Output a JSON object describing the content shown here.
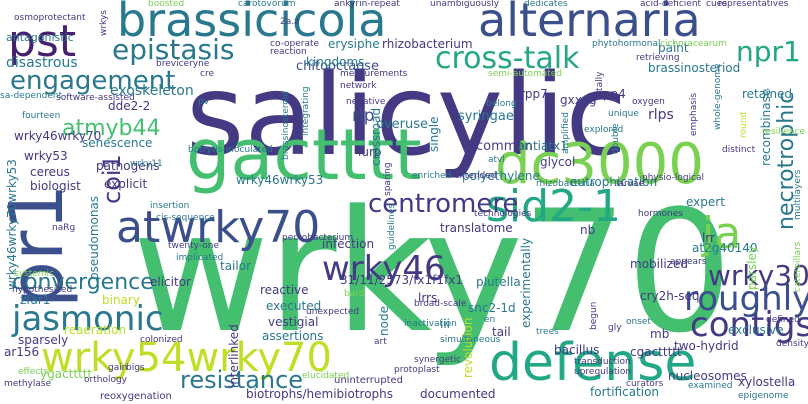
{
  "palette": {
    "navy": "#3b4f8c",
    "indigo": "#433a83",
    "purple": "#46206e",
    "teal": "#2a788e",
    "cyan": "#22a884",
    "green": "#44bf70",
    "lime": "#7ad151",
    "yellowgreen": "#bddf26"
  },
  "words": [
    {
      "text": "salicylic",
      "color": "indigo"
    },
    {
      "text": "wrky70",
      "color": "green"
    },
    {
      "text": "pr1",
      "color": "navy"
    },
    {
      "text": "gactttt",
      "color": "green"
    },
    {
      "text": "brassicicola",
      "color": "teal"
    },
    {
      "text": "alternaria",
      "color": "navy"
    },
    {
      "text": "dc3000",
      "color": "lime"
    },
    {
      "text": "defense",
      "color": "cyan"
    },
    {
      "text": "wrky54wrky70",
      "color": "yellowgreen"
    },
    {
      "text": "atwrky70",
      "color": "navy"
    },
    {
      "text": "pst",
      "color": "purple"
    },
    {
      "text": "sid2-1",
      "color": "cyan"
    },
    {
      "text": "ja",
      "color": "lime"
    },
    {
      "text": "jasmonic",
      "color": "teal"
    },
    {
      "text": "wrky46",
      "color": "indigo"
    },
    {
      "text": "cross-talk",
      "color": "cyan"
    },
    {
      "text": "epistasis",
      "color": "teal"
    },
    {
      "text": "engagement",
      "color": "teal"
    },
    {
      "text": "npr1",
      "color": "cyan"
    },
    {
      "text": "contigs",
      "color": "indigo"
    },
    {
      "text": "wrky30",
      "color": "indigo"
    },
    {
      "text": "roughly",
      "color": "navy"
    },
    {
      "text": "centromere",
      "color": "indigo"
    },
    {
      "text": "convergence",
      "color": "teal"
    },
    {
      "text": "resistance",
      "color": "teal"
    },
    {
      "text": "coi1",
      "color": "indigo"
    },
    {
      "text": "atmyb44",
      "color": "green"
    },
    {
      "text": "necrotrophic",
      "color": "teal"
    },
    {
      "text": "exoskeleton",
      "color": "teal"
    },
    {
      "text": "chitooctaose",
      "color": "navy"
    },
    {
      "text": "disastrous",
      "color": "teal"
    },
    {
      "text": "antagonistic",
      "color": "teal"
    },
    {
      "text": "rhizobacterium",
      "color": "indigo"
    },
    {
      "text": "erysiphe",
      "color": "teal"
    },
    {
      "text": "kingdoms",
      "color": "teal"
    },
    {
      "text": "overuse",
      "color": "teal"
    },
    {
      "text": "rlp",
      "color": "navy"
    },
    {
      "text": "syringae",
      "color": "teal"
    },
    {
      "text": "rpp7",
      "color": "indigo"
    },
    {
      "text": "gxxxg",
      "color": "indigo"
    },
    {
      "text": "rpp4",
      "color": "indigo"
    },
    {
      "text": "rlps",
      "color": "indigo"
    },
    {
      "text": "paint",
      "color": "teal"
    },
    {
      "text": "brassinosteriod",
      "color": "teal"
    },
    {
      "text": "retained",
      "color": "teal"
    },
    {
      "text": "recombinase",
      "color": "teal"
    },
    {
      "text": "dde2-2",
      "color": "indigo"
    },
    {
      "text": "wrky46wrky70",
      "color": "indigo"
    },
    {
      "text": "wrky53",
      "color": "indigo"
    },
    {
      "text": "senescence",
      "color": "teal"
    },
    {
      "text": "cereus",
      "color": "indigo"
    },
    {
      "text": "pathogens",
      "color": "indigo"
    },
    {
      "text": "explicit",
      "color": "indigo"
    },
    {
      "text": "biologist",
      "color": "indigo"
    },
    {
      "text": "wrky46wrky53",
      "color": "teal"
    },
    {
      "text": "lurp",
      "color": "indigo"
    },
    {
      "text": "crossroad",
      "color": "teal"
    },
    {
      "text": "single",
      "color": "teal"
    },
    {
      "text": "common",
      "color": "indigo"
    },
    {
      "text": "antiatx1",
      "color": "teal"
    },
    {
      "text": "glycol",
      "color": "indigo"
    },
    {
      "text": "polyethylene",
      "color": "teal"
    },
    {
      "text": "eutrophication",
      "color": "teal"
    },
    {
      "text": "expert",
      "color": "teal"
    },
    {
      "text": "translatome",
      "color": "indigo"
    },
    {
      "text": "infection",
      "color": "indigo"
    },
    {
      "text": "nb",
      "color": "indigo"
    },
    {
      "text": "lrr",
      "color": "indigo"
    },
    {
      "text": "at2g40140",
      "color": "teal"
    },
    {
      "text": "parsley",
      "color": "lime"
    },
    {
      "text": "zfar1",
      "color": "teal"
    },
    {
      "text": "binary",
      "color": "yellowgreen"
    },
    {
      "text": "tailor",
      "color": "teal"
    },
    {
      "text": "elicitor",
      "color": "indigo"
    },
    {
      "text": "31/11/2573/fx1f1fx1",
      "color": "indigo"
    },
    {
      "text": "plutella",
      "color": "teal"
    },
    {
      "text": "snc2-1d",
      "color": "teal"
    },
    {
      "text": "mobilized",
      "color": "indigo"
    },
    {
      "text": "cry2h-seq",
      "color": "indigo"
    },
    {
      "text": "exclusive",
      "color": "teal"
    },
    {
      "text": "reactive",
      "color": "indigo"
    },
    {
      "text": "executed",
      "color": "teal"
    },
    {
      "text": "vestigial",
      "color": "indigo"
    },
    {
      "text": "assertions",
      "color": "teal"
    },
    {
      "text": "lrrs",
      "color": "indigo"
    },
    {
      "text": "tail",
      "color": "indigo"
    },
    {
      "text": "mb",
      "color": "indigo"
    },
    {
      "text": "two-hydrid",
      "color": "indigo"
    },
    {
      "text": "cgacttttt",
      "color": "indigo"
    },
    {
      "text": "bacillus",
      "color": "indigo"
    },
    {
      "text": "iii",
      "color": "teal"
    },
    {
      "text": "reaeration",
      "color": "yellowgreen"
    },
    {
      "text": "sparsely",
      "color": "indigo"
    },
    {
      "text": "ar156",
      "color": "indigo"
    },
    {
      "text": "ygacttttt",
      "color": "lime"
    },
    {
      "text": "biotrophs/hemibiotrophs",
      "color": "indigo"
    },
    {
      "text": "documented",
      "color": "indigo"
    },
    {
      "text": "fortification",
      "color": "teal"
    },
    {
      "text": "nucleosomes",
      "color": "indigo"
    },
    {
      "text": "xylostella",
      "color": "indigo"
    },
    {
      "text": "revolution",
      "color": "yellowgreen"
    },
    {
      "text": "experimentally",
      "color": "teal"
    },
    {
      "text": "node",
      "color": "teal"
    },
    {
      "text": "interlinked",
      "color": "indigo"
    },
    {
      "text": "pseudomonas",
      "color": "teal"
    },
    {
      "text": "wrky46wrky70wrky53",
      "color": "teal"
    },
    {
      "text": "uninterrupted",
      "color": "indigo"
    },
    {
      "text": "reoxygenation",
      "color": "indigo"
    },
    {
      "text": "ankyrin-repeat",
      "color": "indigo"
    },
    {
      "text": "unambiguously",
      "color": "indigo"
    },
    {
      "text": "dedicates",
      "color": "teal"
    },
    {
      "text": "acid-deficient",
      "color": "indigo"
    },
    {
      "text": "representatives",
      "color": "indigo"
    },
    {
      "text": "carotovorum",
      "color": "teal"
    },
    {
      "text": "boosted",
      "color": "lime"
    },
    {
      "text": "osmoprotectant",
      "color": "indigo"
    },
    {
      "text": "co-operate",
      "color": "indigo"
    },
    {
      "text": "breviceryne",
      "color": "indigo"
    },
    {
      "text": "measurements",
      "color": "indigo"
    },
    {
      "text": "network",
      "color": "indigo"
    },
    {
      "text": "negative",
      "color": "indigo"
    },
    {
      "text": "semi-automated",
      "color": "lime"
    },
    {
      "text": "phytohormonal",
      "color": "teal"
    },
    {
      "text": "retrieving",
      "color": "indigo"
    },
    {
      "text": "cichoracearum",
      "color": "lime"
    },
    {
      "text": "software-assisted",
      "color": "indigo"
    },
    {
      "text": "fourteen",
      "color": "teal"
    },
    {
      "text": "botrytis-inoculated",
      "color": "teal"
    },
    {
      "text": "explored",
      "color": "teal"
    },
    {
      "text": "oxygen",
      "color": "indigo"
    },
    {
      "text": "belong",
      "color": "teal"
    },
    {
      "text": "guidelines",
      "color": "teal"
    },
    {
      "text": "enriched",
      "color": "teal"
    },
    {
      "text": "extended",
      "color": "indigo"
    },
    {
      "text": "double",
      "color": "teal"
    },
    {
      "text": "rhizobacteria",
      "color": "teal"
    },
    {
      "text": "larvae",
      "color": "indigo"
    },
    {
      "text": "insertion",
      "color": "teal"
    },
    {
      "text": "cis-sequence",
      "color": "teal"
    },
    {
      "text": "technologies",
      "color": "indigo"
    },
    {
      "text": "physio-logical",
      "color": "indigo"
    },
    {
      "text": "hormones",
      "color": "indigo"
    },
    {
      "text": "twenty-one",
      "color": "indigo"
    },
    {
      "text": "implicated",
      "color": "teal"
    },
    {
      "text": "hypothesized",
      "color": "indigo"
    },
    {
      "text": "inactivation",
      "color": "teal"
    },
    {
      "text": "simultaneous",
      "color": "teal"
    },
    {
      "text": "appears",
      "color": "indigo"
    },
    {
      "text": "broad-scale",
      "color": "indigo"
    },
    {
      "text": "unexpected",
      "color": "indigo"
    },
    {
      "text": "pectobacterium",
      "color": "indigo"
    },
    {
      "text": "colonized",
      "color": "indigo"
    },
    {
      "text": "bigs",
      "color": "indigo"
    },
    {
      "text": "effects",
      "color": "lime"
    },
    {
      "text": "methylase",
      "color": "indigo"
    },
    {
      "text": "orthology",
      "color": "indigo"
    },
    {
      "text": "gain",
      "color": "indigo"
    },
    {
      "text": "synergetic",
      "color": "indigo"
    },
    {
      "text": "transduction",
      "color": "indigo"
    },
    {
      "text": "upregulation",
      "color": "indigo"
    },
    {
      "text": "protoplast",
      "color": "indigo"
    },
    {
      "text": "curators",
      "color": "indigo"
    },
    {
      "text": "trees",
      "color": "teal"
    },
    {
      "text": "onset",
      "color": "teal"
    },
    {
      "text": "defined",
      "color": "indigo"
    },
    {
      "text": "density",
      "color": "indigo"
    },
    {
      "text": "examined",
      "color": "teal"
    },
    {
      "text": "epigenome",
      "color": "teal"
    },
    {
      "text": "whole-genome",
      "color": "teal"
    },
    {
      "text": "emphasis",
      "color": "indigo"
    },
    {
      "text": "distinct",
      "color": "indigo"
    },
    {
      "text": "resilience",
      "color": "lime"
    },
    {
      "text": "caterpillars",
      "color": "lime"
    },
    {
      "text": "multilayers",
      "color": "teal"
    },
    {
      "text": "round",
      "color": "yellowgreen"
    },
    {
      "text": "sa-dependent",
      "color": "teal"
    },
    {
      "text": "wrkys",
      "color": "indigo"
    },
    {
      "text": "cues",
      "color": "indigo"
    },
    {
      "text": "2a.z",
      "color": "indigo"
    },
    {
      "text": "cre",
      "color": "indigo"
    },
    {
      "text": "pv",
      "color": "teal"
    },
    {
      "text": "naRg",
      "color": "indigo"
    },
    {
      "text": "bard",
      "color": "lime"
    },
    {
      "text": "en",
      "color": "teal"
    },
    {
      "text": "art",
      "color": "indigo"
    },
    {
      "text": "gly",
      "color": "indigo"
    },
    {
      "text": "begun",
      "color": "indigo"
    },
    {
      "text": "atvl",
      "color": "teal"
    },
    {
      "text": "sparing",
      "color": "indigo"
    },
    {
      "text": "unique",
      "color": "teal"
    },
    {
      "text": "wrky11",
      "color": "teal"
    },
    {
      "text": "systemic",
      "color": "lime"
    },
    {
      "text": "totally",
      "color": "indigo"
    },
    {
      "text": "integrating",
      "color": "teal"
    },
    {
      "text": "reaction",
      "color": "indigo"
    },
    {
      "text": "brassinosteroid",
      "color": "teal"
    },
    {
      "text": "elucidated",
      "color": "lime"
    },
    {
      "text": "amplified",
      "color": "teal"
    }
  ]
}
